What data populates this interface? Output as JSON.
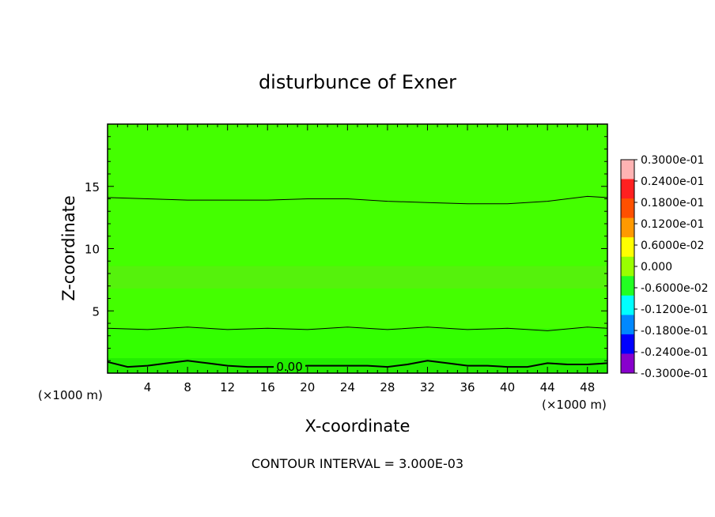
{
  "chart_data": {
    "type": "heatmap",
    "title": "disturbunce of Exner",
    "xlabel": "X-coordinate",
    "ylabel": "Z-coordinate",
    "x_unit_label": "(×1000 m)",
    "x_unit_label_left": "(×1000 m)",
    "xlim": [
      0,
      50
    ],
    "ylim": [
      0,
      20
    ],
    "x_ticks": [
      4,
      8,
      12,
      16,
      20,
      24,
      28,
      32,
      36,
      40,
      44,
      48
    ],
    "y_ticks": [
      5,
      10,
      15
    ],
    "colorbar": {
      "labels": [
        "0.3000e-01",
        "0.2400e-01",
        "0.1800e-01",
        "0.1200e-01",
        "0.6000e-02",
        "0.000",
        "-0.6000e-02",
        "-0.1200e-01",
        "-0.1800e-01",
        "-0.2400e-01",
        "-0.3000e-01"
      ],
      "values": [
        0.03,
        0.024,
        0.018,
        0.012,
        0.006,
        0.0,
        -0.006,
        -0.012,
        -0.018,
        -0.024,
        -0.03
      ]
    },
    "contour_interval_text": "CONTOUR INTERVAL = 3.000E-03",
    "contour_label": "0.00",
    "contours": [
      {
        "name": "upper",
        "x": [
          0,
          4,
          8,
          12,
          16,
          20,
          24,
          28,
          32,
          36,
          40,
          44,
          48,
          50
        ],
        "z": [
          14.1,
          14.0,
          13.9,
          13.9,
          13.9,
          14.0,
          14.0,
          13.8,
          13.7,
          13.6,
          13.6,
          13.8,
          14.2,
          14.1
        ]
      },
      {
        "name": "middle",
        "x": [
          0,
          4,
          8,
          12,
          16,
          20,
          24,
          28,
          32,
          36,
          40,
          44,
          48,
          50
        ],
        "z": [
          3.6,
          3.5,
          3.7,
          3.5,
          3.6,
          3.5,
          3.7,
          3.5,
          3.7,
          3.5,
          3.6,
          3.4,
          3.7,
          3.6
        ]
      },
      {
        "name": "zero",
        "x": [
          0,
          2,
          4,
          6,
          8,
          10,
          12,
          14,
          16,
          18,
          20,
          22,
          24,
          26,
          28,
          30,
          32,
          34,
          36,
          38,
          40,
          42,
          44,
          46,
          48,
          50
        ],
        "z": [
          0.9,
          0.5,
          0.6,
          0.8,
          1.0,
          0.8,
          0.6,
          0.5,
          0.5,
          0.5,
          0.6,
          0.6,
          0.6,
          0.6,
          0.5,
          0.7,
          1.0,
          0.8,
          0.6,
          0.6,
          0.5,
          0.5,
          0.8,
          0.7,
          0.7,
          0.8
        ]
      }
    ],
    "colors": {
      "field": "#44ff00",
      "band_light": "#55f20c",
      "band_bright": "#33ff00",
      "near_surface": "#22ee00",
      "colorbar": [
        "#ffb3b3",
        "#ff2020",
        "#ff5000",
        "#ff9900",
        "#ffff00",
        "#99ff00",
        "#22ff22",
        "#00ffff",
        "#0088ff",
        "#0000ff",
        "#8800cc"
      ]
    }
  }
}
